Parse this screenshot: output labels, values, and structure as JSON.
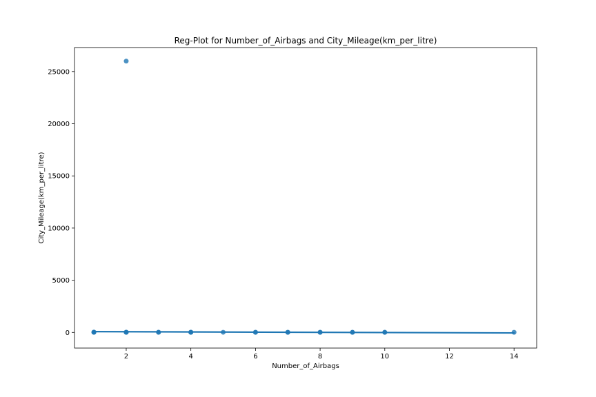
{
  "chart_data": {
    "type": "scatter",
    "title": "Reg-Plot for Number_of_Airbags and City_Mileage(km_per_litre)",
    "xlabel": "Number_of_Airbags",
    "ylabel": "City_Mileage(km_per_litre)",
    "xlim": [
      0.4,
      14.7
    ],
    "ylim": [
      -1500,
      27300
    ],
    "xticks": [
      2,
      4,
      6,
      8,
      10,
      12,
      14
    ],
    "yticks": [
      0,
      5000,
      10000,
      15000,
      20000,
      25000
    ],
    "grid": false,
    "points": [
      {
        "x": 1,
        "y": 18
      },
      {
        "x": 1,
        "y": 10
      },
      {
        "x": 1,
        "y": 25
      },
      {
        "x": 2,
        "y": 26000
      },
      {
        "x": 2,
        "y": 15
      },
      {
        "x": 2,
        "y": 12
      },
      {
        "x": 2,
        "y": 20
      },
      {
        "x": 3,
        "y": 16
      },
      {
        "x": 3,
        "y": 12
      },
      {
        "x": 4,
        "y": 15
      },
      {
        "x": 4,
        "y": 10
      },
      {
        "x": 4,
        "y": 22
      },
      {
        "x": 5,
        "y": 14
      },
      {
        "x": 6,
        "y": 14
      },
      {
        "x": 6,
        "y": 10
      },
      {
        "x": 7,
        "y": 13
      },
      {
        "x": 7,
        "y": 9
      },
      {
        "x": 8,
        "y": 12
      },
      {
        "x": 8,
        "y": 9
      },
      {
        "x": 9,
        "y": 12
      },
      {
        "x": 9,
        "y": 8
      },
      {
        "x": 10,
        "y": 11
      },
      {
        "x": 10,
        "y": 8
      },
      {
        "x": 14,
        "y": 10
      }
    ],
    "regression_line": {
      "x": [
        1,
        14
      ],
      "y": [
        75,
        -50
      ]
    },
    "colors": {
      "series": "#1f77b4"
    }
  }
}
